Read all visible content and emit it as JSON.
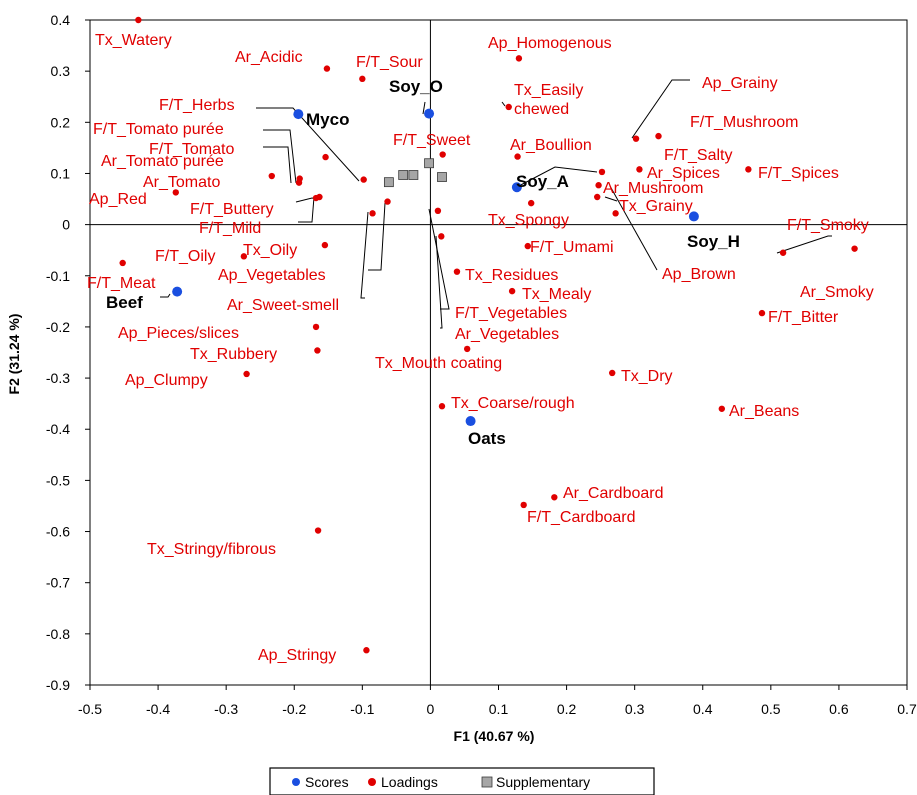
{
  "chart_data": {
    "type": "scatter",
    "xlabel": "F1 (40.67 %)",
    "ylabel": "F2 (31.24 %)",
    "xlim": [
      -0.5,
      0.7
    ],
    "ylim": [
      -0.9,
      0.4
    ],
    "xticks": [
      "-0.5",
      "-0.4",
      "-0.3",
      "-0.2",
      "-0.1",
      "0",
      "0.1",
      "0.2",
      "0.3",
      "0.4",
      "0.5",
      "0.6",
      "0.7"
    ],
    "yticks": [
      "0.4",
      "0.3",
      "0.2",
      "0.1",
      "0",
      "-0.1",
      "-0.2",
      "-0.3",
      "-0.4",
      "-0.5",
      "-0.6",
      "-0.7",
      "-0.8",
      "-0.9"
    ],
    "grid": false,
    "legend_position": "bottom",
    "colors": {
      "scores": "#1a4fe0",
      "loadings": "#e00000",
      "supplementary": "#a6a6a6"
    },
    "series": [
      {
        "name": "Scores",
        "points": [
          {
            "label": "Soy_O",
            "x": -0.002,
            "y": 0.217
          },
          {
            "label": "Myco",
            "x": -0.194,
            "y": 0.216
          },
          {
            "label": "Soy_A",
            "x": 0.127,
            "y": 0.073
          },
          {
            "label": "Soy_H",
            "x": 0.387,
            "y": 0.016
          },
          {
            "label": "Beef",
            "x": -0.372,
            "y": -0.131
          },
          {
            "label": "Oats",
            "x": 0.059,
            "y": -0.384
          }
        ]
      },
      {
        "name": "Loadings",
        "points": [
          {
            "label": "Tx_Watery",
            "x": -0.429,
            "y": 0.4
          },
          {
            "label": "Ar_Acidic",
            "x": -0.152,
            "y": 0.305
          },
          {
            "label": "F/T_Sour",
            "x": -0.1,
            "y": 0.285
          },
          {
            "label": "Ap_Homogenous",
            "x": 0.13,
            "y": 0.325
          },
          {
            "label": "Tx_Easily\nchewed",
            "x": 0.115,
            "y": 0.23
          },
          {
            "label": "Ap_Grainy",
            "x": 0.302,
            "y": 0.168
          },
          {
            "label": "F/T_Mushroom",
            "x": 0.335,
            "y": 0.173
          },
          {
            "label": "F/T_Herbs",
            "x": -0.154,
            "y": 0.132
          },
          {
            "label": "F/T_Tomato purée",
            "x": -0.098,
            "y": 0.088
          },
          {
            "label": "F/T_Tomato",
            "x": -0.192,
            "y": 0.09
          },
          {
            "label": "Ar_Tomato purée",
            "x": -0.193,
            "y": 0.082
          },
          {
            "label": "Ar_Tomato",
            "x": -0.233,
            "y": 0.095
          },
          {
            "label": "Ap_Red",
            "x": -0.374,
            "y": 0.063
          },
          {
            "label": "F/T_Sweet",
            "x": 0.018,
            "y": 0.137
          },
          {
            "label": "Ar_Boullion",
            "x": 0.128,
            "y": 0.133
          },
          {
            "label": "F/T_Salty",
            "x": 0.252,
            "y": 0.103
          },
          {
            "label": "Ar_Spices",
            "x": 0.307,
            "y": 0.108
          },
          {
            "label": "F/T_Spices",
            "x": 0.467,
            "y": 0.108
          },
          {
            "label": "Ar_Mushroom",
            "x": 0.247,
            "y": 0.077
          },
          {
            "label": "Tx_Grainy",
            "x": 0.245,
            "y": 0.054
          },
          {
            "label": "F/T_Buttery",
            "x": -0.163,
            "y": 0.054
          },
          {
            "label": "F/T_Mild",
            "x": -0.168,
            "y": 0.052
          },
          {
            "label": "Tx_Spongy",
            "x": 0.148,
            "y": 0.042
          },
          {
            "label": "Ap_Brown",
            "x": 0.272,
            "y": 0.022
          },
          {
            "label": "F/T_Smoky",
            "x": 0.518,
            "y": -0.055
          },
          {
            "label": "Ar_Smoky",
            "x": 0.623,
            "y": -0.047
          },
          {
            "label": "F/T_Oily",
            "x": -0.274,
            "y": -0.062
          },
          {
            "label": "Tx_Oily",
            "x": -0.155,
            "y": -0.04
          },
          {
            "label": "Ap_Vegetables",
            "x": -0.063,
            "y": 0.045
          },
          {
            "label": "Ar_Sweet-smell",
            "x": -0.085,
            "y": 0.022
          },
          {
            "label": "F/T_Umami",
            "x": 0.143,
            "y": -0.042
          },
          {
            "label": "Tx_Residues",
            "x": 0.039,
            "y": -0.092
          },
          {
            "label": "Tx_Mealy",
            "x": 0.12,
            "y": -0.13
          },
          {
            "label": "F/T_Vegetables",
            "x": 0.011,
            "y": 0.027
          },
          {
            "label": "Ar_Vegetables",
            "x": 0.016,
            "y": -0.023
          },
          {
            "label": "F/T_Meat",
            "x": -0.452,
            "y": -0.075
          },
          {
            "label": "Ap_Pieces/slices",
            "x": -0.168,
            "y": -0.2
          },
          {
            "label": "Tx_Rubbery",
            "x": -0.166,
            "y": -0.246
          },
          {
            "label": "Ap_Clumpy",
            "x": -0.27,
            "y": -0.292
          },
          {
            "label": "Tx_Mouth coating",
            "x": 0.054,
            "y": -0.243
          },
          {
            "label": "F/T_Bitter",
            "x": 0.487,
            "y": -0.173
          },
          {
            "label": "Tx_Dry",
            "x": 0.267,
            "y": -0.29
          },
          {
            "label": "Tx_Coarse/rough",
            "x": 0.017,
            "y": -0.355
          },
          {
            "label": "Ar_Beans",
            "x": 0.428,
            "y": -0.36
          },
          {
            "label": "Ar_Cardboard",
            "x": 0.182,
            "y": -0.533
          },
          {
            "label": "F/T_Cardboard",
            "x": 0.137,
            "y": -0.548
          },
          {
            "label": "Tx_Stringy/fibrous",
            "x": -0.165,
            "y": -0.598
          },
          {
            "label": "Ap_Stringy",
            "x": -0.094,
            "y": -0.832
          }
        ]
      },
      {
        "name": "Supplementary",
        "points": [
          {
            "label": "",
            "x": -0.061,
            "y": 0.083
          },
          {
            "label": "",
            "x": -0.04,
            "y": 0.097
          },
          {
            "label": "",
            "x": -0.025,
            "y": 0.097
          },
          {
            "label": "",
            "x": -0.002,
            "y": 0.12
          },
          {
            "label": "",
            "x": 0.017,
            "y": 0.093
          }
        ]
      }
    ]
  }
}
